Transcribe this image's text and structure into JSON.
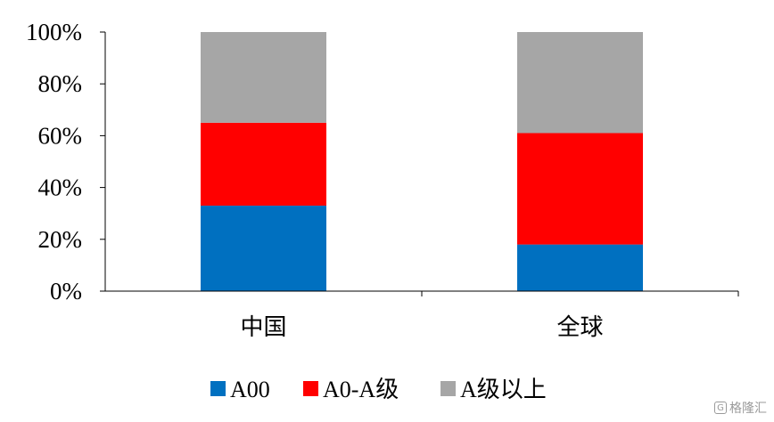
{
  "chart_data": {
    "type": "bar",
    "stacked": true,
    "categories": [
      "中国",
      "全球"
    ],
    "series": [
      {
        "name": "A00",
        "values": [
          33,
          18
        ],
        "color": "#0070C0"
      },
      {
        "name": "A0-A级",
        "values": [
          32,
          43
        ],
        "color": "#FF0000"
      },
      {
        "name": "A级以上",
        "values": [
          35,
          39
        ],
        "color": "#A6A6A6"
      }
    ],
    "ylim": [
      0,
      100
    ],
    "yticks": [
      "0%",
      "20%",
      "40%",
      "60%",
      "80%",
      "100%"
    ],
    "legend_position": "bottom",
    "grid": false
  },
  "watermark": {
    "text": "格隆汇",
    "icon": "logo-icon"
  }
}
